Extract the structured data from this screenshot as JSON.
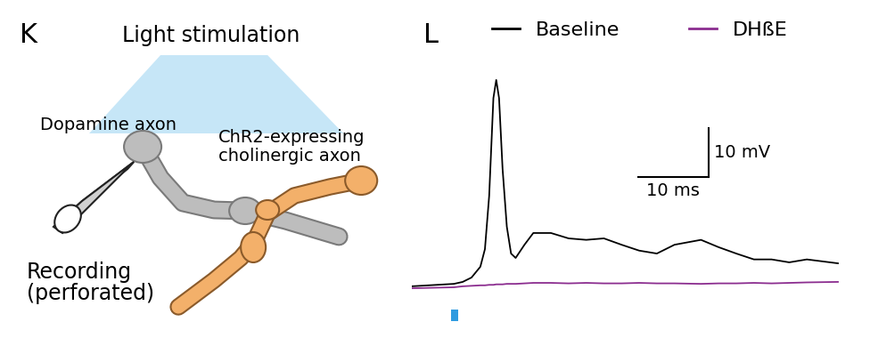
{
  "diagram": {
    "panel_label": "K",
    "title": "Light stimulation",
    "labels": {
      "dopamine": "Dopamine axon",
      "cholinergic": "ChR2-expressing\ncholinergic axon",
      "recording": "Recording\n(perforated)"
    }
  },
  "chart_data": {
    "panel_label": "L",
    "type": "line",
    "x": [
      0,
      6,
      7.25,
      8.5,
      9.75,
      10.4,
      11,
      11.6,
      12,
      12.4,
      12.9,
      13.5,
      14.1,
      14.75,
      16,
      17.25,
      19.75,
      22.25,
      24.75,
      27.25,
      29.75,
      32.25,
      34.75,
      37.25,
      41,
      43.5,
      46,
      48.5,
      51,
      53.5,
      56,
      60.4
    ],
    "series": [
      {
        "name": "Baseline",
        "color": "#000000",
        "values": [
          0,
          0.5,
          0.9,
          1.8,
          4,
          7.6,
          18.5,
          38.5,
          42.2,
          38.5,
          24,
          12.2,
          6.7,
          5.8,
          8.5,
          10.9,
          10.9,
          9.8,
          9.5,
          9.8,
          8.5,
          7.3,
          6.7,
          8.5,
          9.5,
          8,
          6.7,
          5.5,
          5.5,
          4.9,
          5.5,
          4.7
        ]
      },
      {
        "name": "DHßE",
        "color": "#8b2d8f",
        "values": [
          -0.4,
          -0.2,
          0,
          0.1,
          0.2,
          0.2,
          0.3,
          0.3,
          0.4,
          0.4,
          0.4,
          0.5,
          0.5,
          0.5,
          0.6,
          0.7,
          0.7,
          0.6,
          0.7,
          0.6,
          0.6,
          0.7,
          0.6,
          0.6,
          0.5,
          0.6,
          0.6,
          0.7,
          0.6,
          0.7,
          0.8,
          0.9
        ]
      }
    ],
    "xlim": [
      0,
      61
    ],
    "ylim": [
      -2,
      45
    ],
    "tick_labels": false,
    "legend": "top",
    "scale_bars": {
      "x": {
        "value": 10,
        "label": "10 ms"
      },
      "y": {
        "value": 10,
        "label": "10 mV"
      }
    },
    "stimulus": {
      "start": 5.6,
      "end": 6.6,
      "color": "#2f9be0"
    }
  }
}
